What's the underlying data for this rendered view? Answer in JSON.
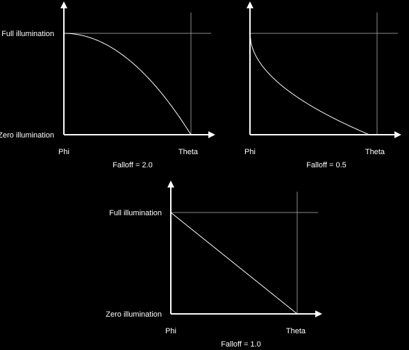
{
  "colors": {
    "background": "#000000",
    "axis": "#ffffff",
    "curve": "#ffffff",
    "guide": "#8c8c8c",
    "text": "#ffffff"
  },
  "chart_data": [
    {
      "type": "line",
      "title": "Falloff = 2.0",
      "falloff": 2.0,
      "y_labels": {
        "top": "Full illumination",
        "bottom": "Zero illumination"
      },
      "x_labels": {
        "left": "Phi",
        "right": "Theta"
      },
      "xlim": [
        0,
        1
      ],
      "ylim": [
        0,
        1
      ],
      "grid": false
    },
    {
      "type": "line",
      "title": "Falloff = 0.5",
      "falloff": 0.5,
      "y_labels": {
        "top": "",
        "bottom": ""
      },
      "x_labels": {
        "left": "Phi",
        "right": "Theta"
      },
      "xlim": [
        0,
        1
      ],
      "ylim": [
        0,
        1
      ],
      "grid": false
    },
    {
      "type": "line",
      "title": "Falloff = 1.0",
      "falloff": 1.0,
      "y_labels": {
        "top": "Full illumination",
        "bottom": "Zero illumination"
      },
      "x_labels": {
        "left": "Phi",
        "right": "Theta"
      },
      "xlim": [
        0,
        1
      ],
      "ylim": [
        0,
        1
      ],
      "grid": false
    }
  ]
}
